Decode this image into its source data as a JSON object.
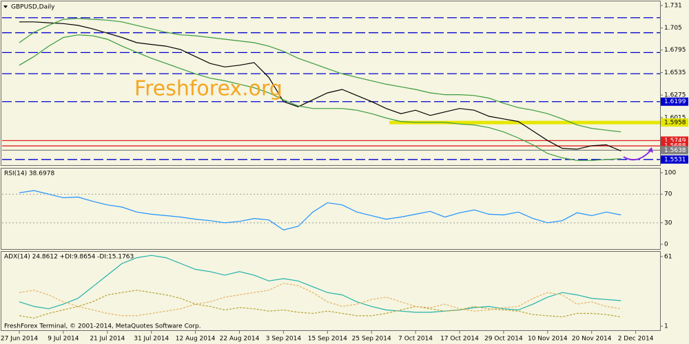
{
  "chart_data": [
    {
      "type": "line",
      "title": "GBPUSD,Daily",
      "watermark": "Freshforex.org",
      "footer": "FreshForex Terminal, © 2001-2014, MetaQuotes Software Corp.",
      "categories": [
        "27 Jun 2014",
        null,
        null,
        "9 Jul 2014",
        null,
        null,
        "21 Jul 2014",
        null,
        null,
        "31 Jul 2014",
        null,
        null,
        "12 Aug 2014",
        null,
        null,
        "22 Aug 2014",
        null,
        null,
        "3 Sep 2014",
        null,
        null,
        "15 Sep 2014",
        null,
        null,
        "25 Sep 2014",
        null,
        null,
        "7 Oct 2014",
        null,
        null,
        "17 Oct 2014",
        null,
        null,
        "29 Oct 2014",
        null,
        null,
        "10 Nov 2014",
        null,
        null,
        "20 Nov 2014",
        null,
        null,
        "2 Dec 2014",
        null,
        null
      ],
      "series": [
        {
          "color": "#000000",
          "values": [
            1.712,
            1.712,
            1.711,
            1.71,
            1.708,
            1.704,
            1.699,
            1.694,
            1.688,
            1.686,
            1.684,
            1.68,
            1.672,
            1.664,
            1.66,
            1.662,
            1.665,
            1.648,
            1.62,
            1.614,
            1.622,
            1.63,
            1.634,
            1.627,
            1.62,
            1.612,
            1.606,
            1.61,
            1.604,
            1.608,
            1.612,
            1.61,
            1.603,
            1.6,
            1.597,
            1.586,
            1.575,
            1.566,
            1.565,
            1.569,
            1.57,
            1.563,
            null,
            null,
            null
          ]
        },
        {
          "color": "#3c9a3c",
          "values": [
            1.688,
            1.7,
            1.708,
            1.715,
            1.716,
            1.715,
            1.714,
            1.712,
            1.708,
            1.704,
            1.7,
            1.697,
            1.696,
            1.694,
            1.692,
            1.69,
            1.688,
            1.684,
            1.678,
            1.67,
            1.664,
            1.658,
            1.652,
            1.648,
            1.644,
            1.64,
            1.637,
            1.634,
            1.63,
            1.628,
            1.628,
            1.627,
            1.624,
            1.618,
            1.613,
            1.61,
            1.606,
            1.6,
            1.593,
            1.589,
            1.587,
            1.585,
            null,
            null,
            null
          ]
        },
        {
          "color": "#3c9a3c",
          "values": [
            1.662,
            1.672,
            1.684,
            1.694,
            1.697,
            1.696,
            1.692,
            1.684,
            1.677,
            1.67,
            1.664,
            1.658,
            1.652,
            1.647,
            1.644,
            1.64,
            1.636,
            1.63,
            1.622,
            1.615,
            1.612,
            1.612,
            1.612,
            1.61,
            1.606,
            1.601,
            1.597,
            1.596,
            1.596,
            1.596,
            1.594,
            1.593,
            1.59,
            1.585,
            1.578,
            1.57,
            1.56,
            1.555,
            1.552,
            1.552,
            1.553,
            1.554,
            null,
            null,
            null
          ]
        }
      ],
      "ylim": [
        1.5466,
        1.7357
      ],
      "yticks": [
        1.731,
        1.705,
        1.6795,
        1.6535,
        1.6275,
        1.6015
      ],
      "levels": [
        1.7168,
        1.6995,
        1.6766,
        1.6522
      ],
      "labeled_levels": [
        {
          "value": 1.6199,
          "color": "#0000cd"
        },
        {
          "value": 1.5958,
          "color": "#e6e600"
        },
        {
          "value": 1.5749,
          "color": "#e02020"
        },
        {
          "value": 1.5688,
          "color": "#e02020"
        },
        {
          "value": 1.5638,
          "color": "#808080"
        },
        {
          "value": 1.5531,
          "color": "#0000cd"
        }
      ]
    },
    {
      "type": "line",
      "title": "RSI(14) 38.6978",
      "series": [
        {
          "color": "#1e90ff",
          "values": [
            72,
            75,
            70,
            65,
            66,
            60,
            55,
            52,
            45,
            42,
            40,
            38,
            35,
            33,
            30,
            32,
            36,
            34,
            20,
            25,
            45,
            58,
            55,
            45,
            40,
            35,
            38,
            42,
            46,
            38,
            44,
            48,
            42,
            41,
            45,
            36,
            30,
            33,
            44,
            40,
            45,
            41,
            null,
            null,
            null
          ]
        }
      ],
      "ylim": [
        -6.7,
        105.8
      ],
      "yticks": [
        100,
        70,
        30,
        0
      ],
      "levels": [
        70,
        30
      ]
    },
    {
      "type": "line",
      "title": "ADX(14) 24.8612 +DI:9.8654 -DI:15.1763",
      "series": [
        {
          "color": "#20b2aa",
          "values": [
            22,
            18,
            16,
            20,
            25,
            35,
            45,
            55,
            60,
            62,
            60,
            55,
            50,
            48,
            45,
            48,
            45,
            40,
            42,
            40,
            35,
            30,
            28,
            22,
            18,
            15,
            14,
            13,
            13,
            14,
            15,
            17,
            18,
            16,
            15,
            20,
            26,
            30,
            28,
            25,
            24,
            23,
            null,
            null,
            null
          ]
        },
        {
          "color": "#b8a030",
          "dashed": true,
          "values": [
            10,
            8,
            12,
            15,
            18,
            22,
            28,
            30,
            32,
            30,
            28,
            25,
            20,
            18,
            15,
            17,
            16,
            14,
            15,
            13,
            12,
            14,
            12,
            10,
            10,
            12,
            15,
            18,
            16,
            14,
            15,
            18,
            16,
            15,
            14,
            11,
            10,
            9,
            12,
            12,
            11,
            9,
            null,
            null,
            null
          ]
        },
        {
          "color": "#e8b060",
          "dashed": true,
          "values": [
            30,
            32,
            28,
            22,
            18,
            15,
            12,
            10,
            10,
            12,
            14,
            16,
            20,
            22,
            26,
            28,
            30,
            32,
            38,
            36,
            30,
            22,
            18,
            20,
            24,
            26,
            22,
            18,
            17,
            20,
            16,
            14,
            15,
            17,
            18,
            25,
            30,
            28,
            20,
            22,
            18,
            16,
            null,
            null,
            null
          ]
        }
      ],
      "ylim": [
        -2.5,
        65.1
      ],
      "yticks": [
        61,
        1
      ]
    }
  ]
}
